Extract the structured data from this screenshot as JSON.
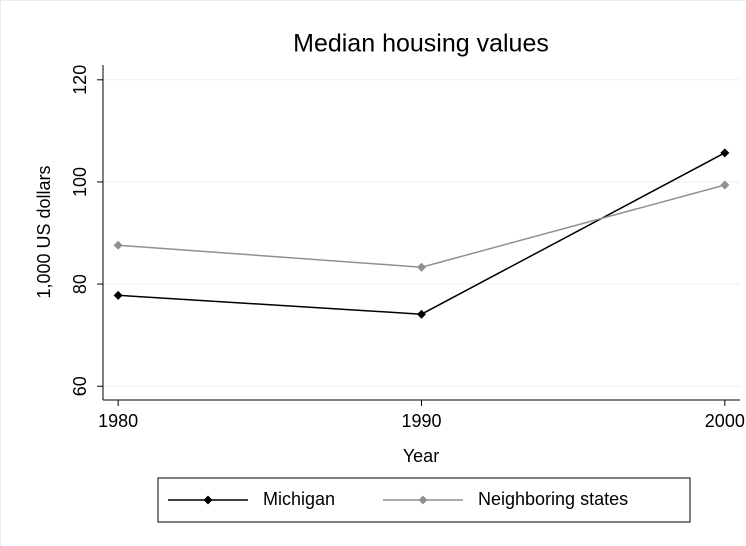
{
  "chart_data": {
    "type": "line",
    "title": "Median housing values",
    "x_label": "Year",
    "y_label": "1,000 US dollars",
    "x": [
      1980,
      1990,
      2000
    ],
    "series": [
      {
        "name": "Michigan",
        "color": "#000000",
        "values": [
          77.8,
          74.1,
          105.7
        ]
      },
      {
        "name": "Neighboring states",
        "color": "#909090",
        "values": [
          87.6,
          83.3,
          99.4
        ]
      }
    ],
    "xlim": [
      1979.5,
      2000.5
    ],
    "xticks": [
      1980,
      1990,
      2000
    ],
    "ylim": [
      57.3,
      122.9
    ],
    "yticks": [
      60,
      80,
      100,
      120
    ],
    "grid": true,
    "legend": "bottom"
  }
}
